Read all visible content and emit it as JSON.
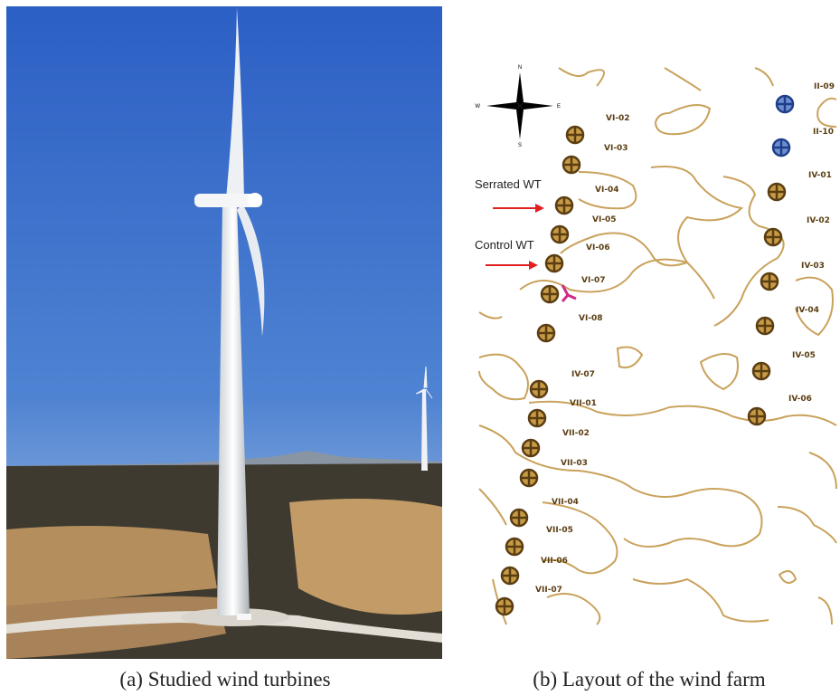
{
  "figure": {
    "panels": [
      {
        "caption": "(a) Studied wind turbines"
      },
      {
        "caption": "(b) Layout of the wind farm",
        "compass": {
          "n": "N",
          "s": "S",
          "e": "E",
          "w": "W"
        },
        "annotations": [
          "Serrated WT",
          "Control WT"
        ],
        "turbines": [
          "VI-02",
          "VI-03",
          "VI-04",
          "VI-05",
          "VI-06",
          "VI-07",
          "VI-08",
          "IV-07",
          "VII-01",
          "VII-02",
          "VII-03",
          "VII-04",
          "VII-05",
          "VII-06",
          "VII-07",
          "II-09",
          "II-10",
          "IV-01",
          "IV-02",
          "IV-03",
          "IV-04",
          "IV-05",
          "IV-06"
        ]
      }
    ]
  }
}
